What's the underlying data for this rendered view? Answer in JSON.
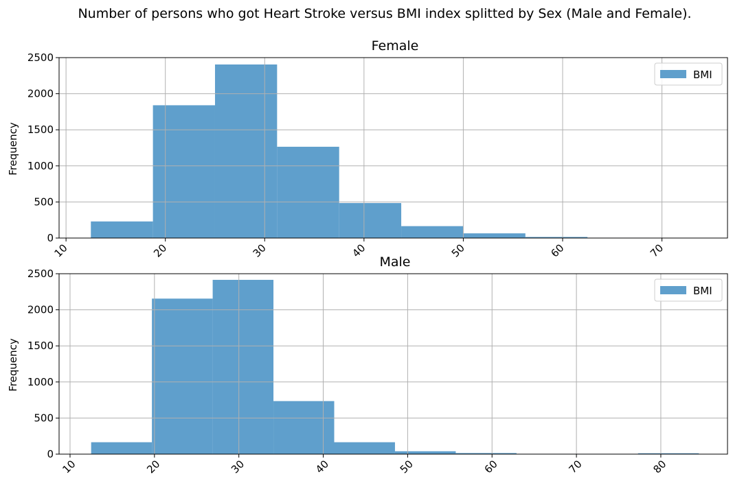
{
  "title": "Number of persons who got Heart Stroke versus BMI index splitted by Sex (Male and Female).",
  "colors": {
    "bar": "#5f9fcc",
    "grid": "#b0b0b0",
    "axis": "#000000"
  },
  "chart_data": [
    {
      "type": "bar",
      "title": "Female",
      "xlabel": "",
      "ylabel": "Frequency",
      "legend": {
        "labels": [
          "BMI"
        ],
        "position": "upper right"
      },
      "grid": true,
      "xlim": [
        9.3,
        76.6
      ],
      "ylim": [
        0,
        2500
      ],
      "xticks": [
        10,
        20,
        30,
        40,
        50,
        60,
        70
      ],
      "yticks": [
        0,
        500,
        1000,
        1500,
        2000,
        2500
      ],
      "bin_edges": [
        12.5,
        18.75,
        25.0,
        31.25,
        37.5,
        43.75,
        50.0,
        56.25,
        62.5,
        68.75,
        75.0
      ],
      "series": [
        {
          "name": "BMI",
          "values": [
            230,
            1840,
            2405,
            1265,
            485,
            165,
            65,
            15,
            5,
            3
          ]
        }
      ]
    },
    {
      "type": "bar",
      "title": "Male",
      "xlabel": "",
      "ylabel": "Frequency",
      "legend": {
        "labels": [
          "BMI"
        ],
        "position": "upper right"
      },
      "grid": true,
      "xlim": [
        8.7,
        87.9
      ],
      "ylim": [
        0,
        2500
      ],
      "xticks": [
        10,
        20,
        30,
        40,
        50,
        60,
        70,
        80
      ],
      "yticks": [
        0,
        500,
        1000,
        1500,
        2000,
        2500
      ],
      "bin_edges": [
        12.5,
        19.7,
        26.9,
        34.1,
        41.3,
        48.5,
        55.7,
        62.9,
        70.1,
        77.3,
        84.5
      ],
      "series": [
        {
          "name": "BMI",
          "values": [
            165,
            2155,
            2415,
            735,
            165,
            40,
            15,
            5,
            5,
            12
          ]
        }
      ]
    }
  ]
}
